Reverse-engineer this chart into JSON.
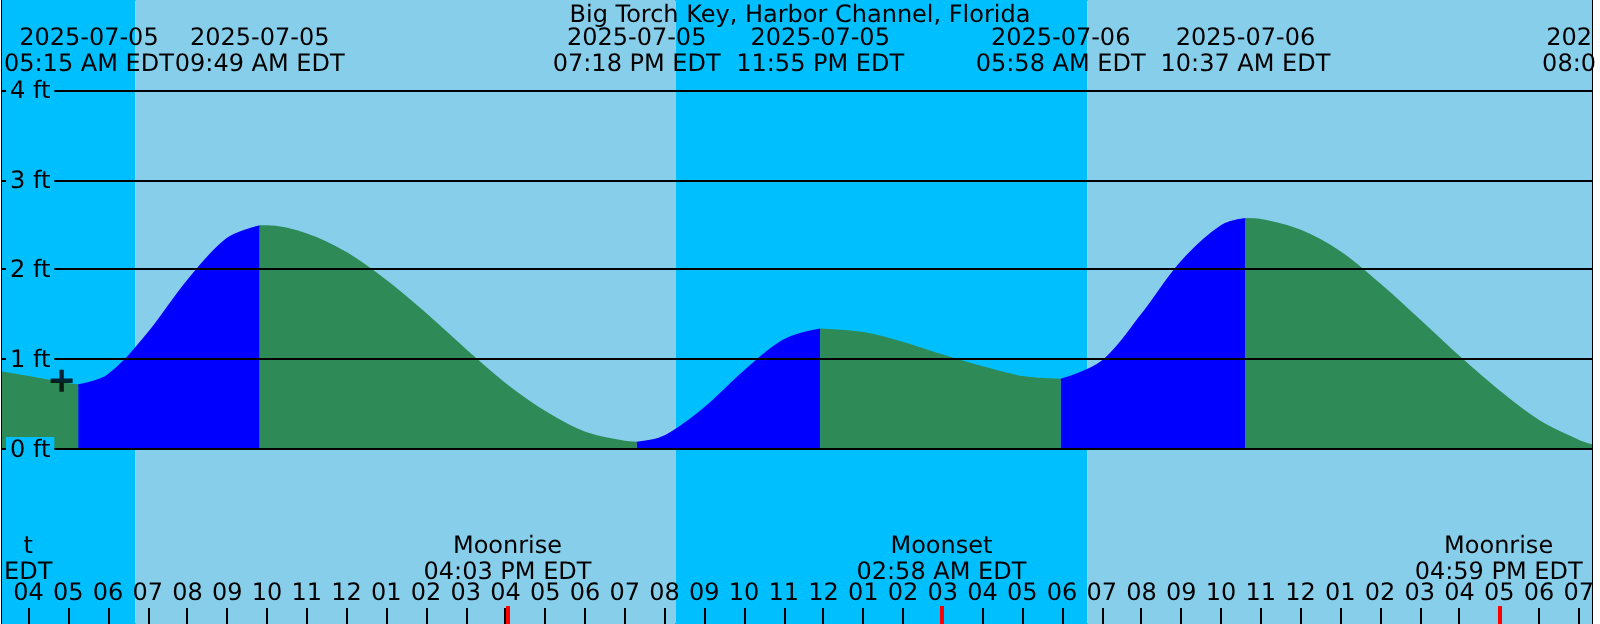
{
  "chart_data": {
    "type": "area",
    "title": "Big Torch Key, Harbor Channel, Florida",
    "x": [
      "2025-07-05T03:20",
      "2025-07-05T04:00",
      "2025-07-05T05:00",
      "2025-07-05T05:15",
      "2025-07-05T06:00",
      "2025-07-05T07:00",
      "2025-07-05T08:00",
      "2025-07-05T09:00",
      "2025-07-05T09:49",
      "2025-07-05T10:00",
      "2025-07-05T11:00",
      "2025-07-05T12:00",
      "2025-07-05T13:00",
      "2025-07-05T14:00",
      "2025-07-05T15:00",
      "2025-07-05T16:00",
      "2025-07-05T17:00",
      "2025-07-05T18:00",
      "2025-07-05T19:00",
      "2025-07-05T19:18",
      "2025-07-05T20:00",
      "2025-07-05T21:00",
      "2025-07-05T22:00",
      "2025-07-05T23:00",
      "2025-07-05T23:55",
      "2025-07-06T01:00",
      "2025-07-06T02:00",
      "2025-07-06T03:00",
      "2025-07-06T04:00",
      "2025-07-06T05:00",
      "2025-07-06T05:58",
      "2025-07-06T07:00",
      "2025-07-06T08:00",
      "2025-07-06T09:00",
      "2025-07-06T10:00",
      "2025-07-06T10:37",
      "2025-07-06T11:00",
      "2025-07-06T12:00",
      "2025-07-06T13:00",
      "2025-07-06T14:00",
      "2025-07-06T15:00",
      "2025-07-06T16:00",
      "2025-07-06T17:00",
      "2025-07-06T18:00",
      "2025-07-06T19:00",
      "2025-07-06T19:20"
    ],
    "series": [
      {
        "color": "#0000ff",
        "values": [
          null,
          null,
          null,
          0.71,
          0.82,
          1.28,
          1.87,
          2.34,
          2.48,
          null,
          null,
          null,
          null,
          null,
          null,
          null,
          null,
          null,
          null,
          0.07,
          0.14,
          0.45,
          0.86,
          1.21,
          1.33,
          null,
          null,
          null,
          null,
          null,
          0.77,
          0.97,
          1.49,
          2.08,
          2.48,
          2.56,
          null,
          null,
          null,
          null,
          null,
          null,
          null,
          null,
          null,
          null
        ]
      },
      {
        "color": "#2e8b57",
        "values": [
          0.85,
          0.8,
          0.72,
          0.71,
          null,
          null,
          null,
          null,
          2.48,
          2.48,
          2.39,
          2.18,
          1.87,
          1.5,
          1.1,
          0.72,
          0.41,
          0.18,
          0.08,
          0.07,
          null,
          null,
          null,
          null,
          1.33,
          1.29,
          1.18,
          1.04,
          0.91,
          0.8,
          0.77,
          null,
          null,
          null,
          null,
          2.56,
          2.55,
          2.43,
          2.19,
          1.83,
          1.43,
          1.02,
          0.64,
          0.31,
          0.09,
          0.04
        ]
      },
      {
        "type": "scatter",
        "color": "#000000",
        "marker": "cross",
        "x": [
          "2025-07-05T04:50"
        ],
        "values": [
          0.76
        ]
      }
    ],
    "xlim": [
      "2025-07-05T03:20",
      "2025-07-06T19:20"
    ],
    "xticks": [
      {
        "value": "2025-07-05T04:00",
        "label": "04"
      },
      {
        "value": "2025-07-05T05:00",
        "label": "05"
      },
      {
        "value": "2025-07-05T06:00",
        "label": "06"
      },
      {
        "value": "2025-07-05T07:00",
        "label": "07"
      },
      {
        "value": "2025-07-05T08:00",
        "label": "08"
      },
      {
        "value": "2025-07-05T09:00",
        "label": "09"
      },
      {
        "value": "2025-07-05T10:00",
        "label": "10"
      },
      {
        "value": "2025-07-05T11:00",
        "label": "11"
      },
      {
        "value": "2025-07-05T12:00",
        "label": "12"
      },
      {
        "value": "2025-07-05T13:00",
        "label": "01"
      },
      {
        "value": "2025-07-05T14:00",
        "label": "02"
      },
      {
        "value": "2025-07-05T15:00",
        "label": "03"
      },
      {
        "value": "2025-07-05T16:00",
        "label": "04"
      },
      {
        "value": "2025-07-05T16:03",
        "label": null
      },
      {
        "value": "2025-07-05T17:00",
        "label": "05"
      },
      {
        "value": "2025-07-05T18:00",
        "label": "06"
      },
      {
        "value": "2025-07-05T19:00",
        "label": "07"
      },
      {
        "value": "2025-07-05T20:00",
        "label": "08"
      },
      {
        "value": "2025-07-05T21:00",
        "label": "09"
      },
      {
        "value": "2025-07-05T22:00",
        "label": "10"
      },
      {
        "value": "2025-07-05T23:00",
        "label": "11"
      },
      {
        "value": "2025-07-06T00:00",
        "label": "12"
      },
      {
        "value": "2025-07-06T01:00",
        "label": "01"
      },
      {
        "value": "2025-07-06T02:00",
        "label": "02"
      },
      {
        "value": "2025-07-06T02:58",
        "label": null
      },
      {
        "value": "2025-07-06T03:00",
        "label": "03"
      },
      {
        "value": "2025-07-06T04:00",
        "label": "04"
      },
      {
        "value": "2025-07-06T05:00",
        "label": "05"
      },
      {
        "value": "2025-07-06T06:00",
        "label": "06"
      },
      {
        "value": "2025-07-06T07:00",
        "label": "07"
      },
      {
        "value": "2025-07-06T08:00",
        "label": "08"
      },
      {
        "value": "2025-07-06T09:00",
        "label": "09"
      },
      {
        "value": "2025-07-06T10:00",
        "label": "10"
      },
      {
        "value": "2025-07-06T11:00",
        "label": "11"
      },
      {
        "value": "2025-07-06T12:00",
        "label": "12"
      },
      {
        "value": "2025-07-06T13:00",
        "label": "01"
      },
      {
        "value": "2025-07-06T14:00",
        "label": "02"
      },
      {
        "value": "2025-07-06T15:00",
        "label": "03"
      },
      {
        "value": "2025-07-06T16:00",
        "label": "04"
      },
      {
        "value": "2025-07-06T16:59",
        "label": null
      },
      {
        "value": "2025-07-06T17:00",
        "label": "05"
      },
      {
        "value": "2025-07-06T18:00",
        "label": "06"
      },
      {
        "value": "2025-07-06T19:00",
        "label": "07"
      }
    ],
    "ylim": [
      -1.95,
      5.0
    ],
    "yticks": [
      {
        "value": 0,
        "label": "0 ft"
      },
      {
        "value": 1,
        "label": "1 ft"
      },
      {
        "value": 2,
        "label": "2 ft"
      },
      {
        "value": 3,
        "label": "3 ft"
      },
      {
        "value": 4,
        "label": "4 ft"
      }
    ],
    "grid": "y",
    "bands": [
      {
        "axis": "x",
        "from": "2025-07-05T03:20",
        "to": "2025-07-05T06:41",
        "color": "#00bfff"
      },
      {
        "axis": "x",
        "from": "2025-07-05T06:41",
        "to": "2025-07-05T20:17",
        "color": "#87ceeb"
      },
      {
        "axis": "x",
        "from": "2025-07-05T20:17",
        "to": "2025-07-06T06:38",
        "color": "#00bfff"
      },
      {
        "axis": "x",
        "from": "2025-07-06T06:38",
        "to": "2025-07-06T19:20",
        "color": "#87ceeb"
      }
    ],
    "annotations": [
      "2025-07-05\n05:15 AM EDT",
      "2025-07-05\n09:49 AM EDT",
      "2025-07-05\n07:18 PM EDT",
      "2025-07-05\n11:55 PM EDT",
      "2025-07-06\n05:58 AM EDT",
      "2025-07-06\n10:37 AM EDT",
      "202\n08:0",
      "t\nEDT",
      "Moonrise\n04:03 PM EDT",
      "Moonset\n02:58 AM EDT",
      "Moonrise\n04:59 PM EDT"
    ]
  }
}
